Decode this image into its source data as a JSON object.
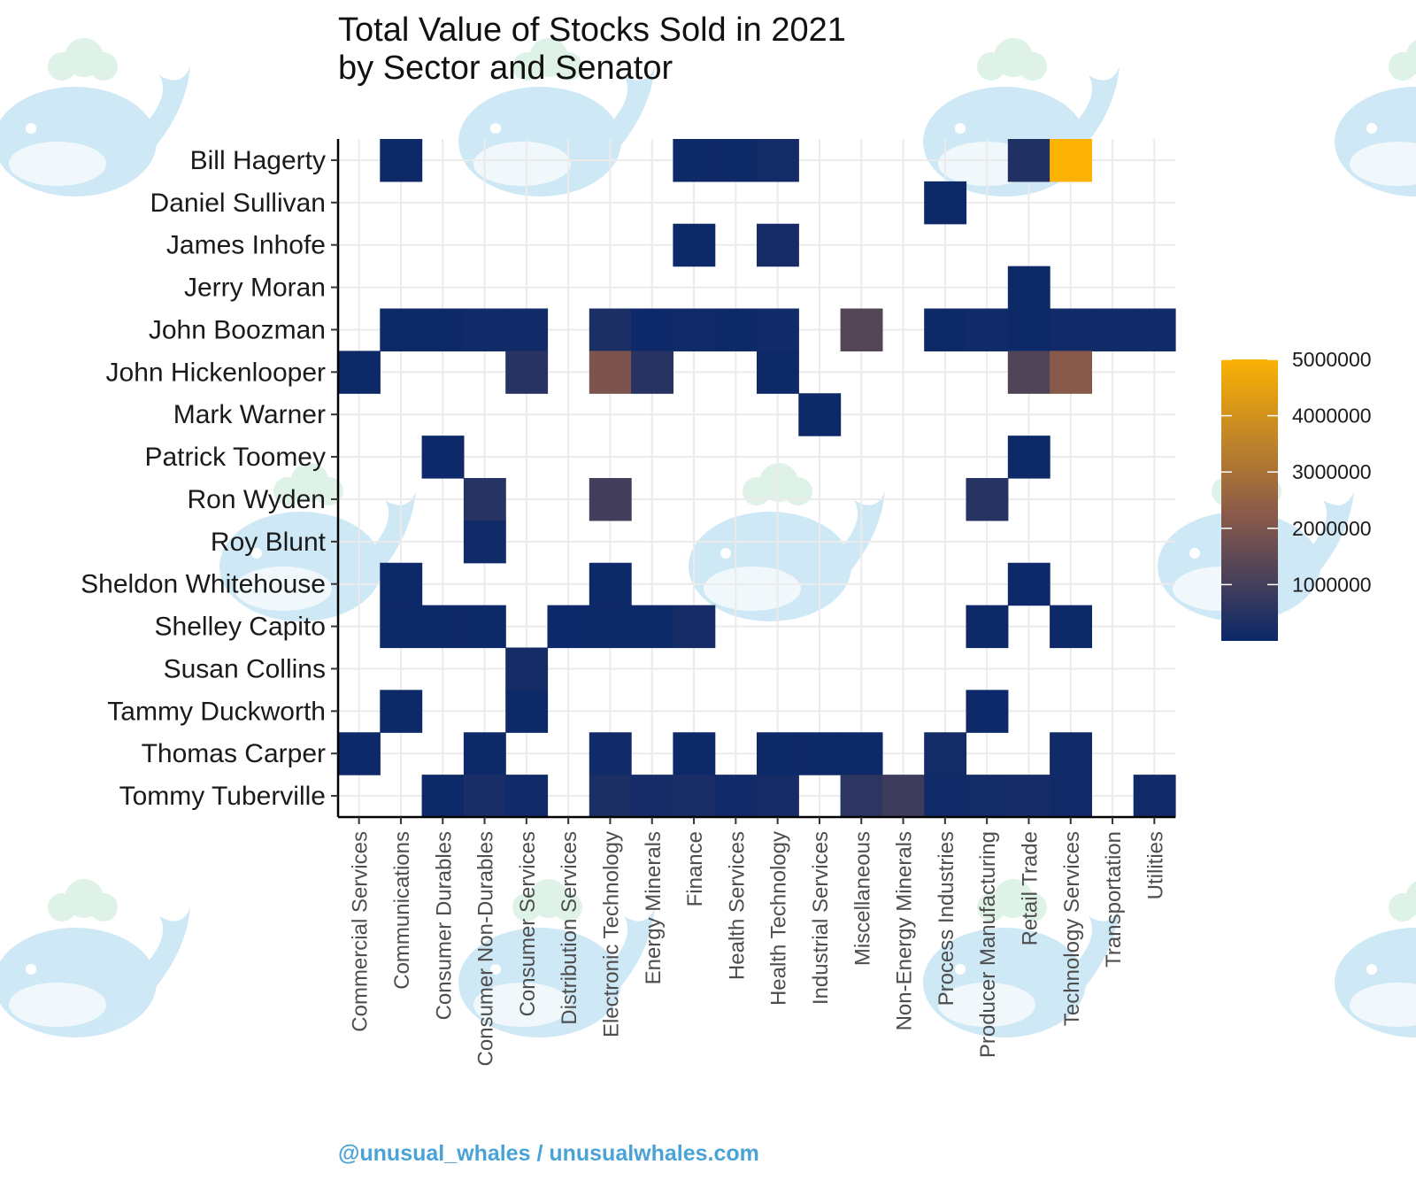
{
  "chart_data": {
    "type": "heatmap",
    "title": [
      "Total Value of Stocks Sold in 2021",
      "by Sector and Senator"
    ],
    "xlabel": "",
    "ylabel": "",
    "x_categories": [
      "Commercial Services",
      "Communications",
      "Consumer Durables",
      "Consumer Non-Durables",
      "Consumer Services",
      "Distribution Services",
      "Electronic Technology",
      "Energy Minerals",
      "Finance",
      "Health Services",
      "Health Technology",
      "Industrial Services",
      "Miscellaneous",
      "Non-Energy Minerals",
      "Process Industries",
      "Producer Manufacturing",
      "Retail Trade",
      "Technology Services",
      "Transportation",
      "Utilities"
    ],
    "y_categories": [
      "Bill Hagerty",
      "Daniel Sullivan",
      "James Inhofe",
      "Jerry Moran",
      "John Boozman",
      "John Hickenlooper",
      "Mark Warner",
      "Patrick Toomey",
      "Ron Wyden",
      "Roy Blunt",
      "Sheldon Whitehouse",
      "Shelley Capito",
      "Susan Collins",
      "Tammy Duckworth",
      "Thomas Carper",
      "Tommy Tuberville"
    ],
    "color_scale": {
      "min": 0,
      "max": 5000000,
      "low_color": "#0b2869",
      "mid_color": "#8a5a4a",
      "high_color": "#fbb203"
    },
    "legend": {
      "ticks": [
        "1000000",
        "2000000",
        "3000000",
        "4000000",
        "5000000"
      ],
      "tick_values": [
        1000000,
        2000000,
        3000000,
        4000000,
        5000000
      ],
      "position": "right"
    },
    "cells": [
      {
        "senator": "Bill Hagerty",
        "sector": "Communications",
        "value": 50000
      },
      {
        "senator": "Bill Hagerty",
        "sector": "Finance",
        "value": 50000
      },
      {
        "senator": "Bill Hagerty",
        "sector": "Health Services",
        "value": 50000
      },
      {
        "senator": "Bill Hagerty",
        "sector": "Health Technology",
        "value": 150000
      },
      {
        "senator": "Bill Hagerty",
        "sector": "Retail Trade",
        "value": 400000
      },
      {
        "senator": "Bill Hagerty",
        "sector": "Technology Services",
        "value": 5000000
      },
      {
        "senator": "Daniel Sullivan",
        "sector": "Process Industries",
        "value": 50000
      },
      {
        "senator": "James Inhofe",
        "sector": "Finance",
        "value": 50000
      },
      {
        "senator": "James Inhofe",
        "sector": "Health Technology",
        "value": 200000
      },
      {
        "senator": "Jerry Moran",
        "sector": "Retail Trade",
        "value": 50000
      },
      {
        "senator": "John Boozman",
        "sector": "Communications",
        "value": 50000
      },
      {
        "senator": "John Boozman",
        "sector": "Consumer Durables",
        "value": 50000
      },
      {
        "senator": "John Boozman",
        "sector": "Consumer Non-Durables",
        "value": 100000
      },
      {
        "senator": "John Boozman",
        "sector": "Consumer Services",
        "value": 100000
      },
      {
        "senator": "John Boozman",
        "sector": "Electronic Technology",
        "value": 300000
      },
      {
        "senator": "John Boozman",
        "sector": "Energy Minerals",
        "value": 30000
      },
      {
        "senator": "John Boozman",
        "sector": "Finance",
        "value": 80000
      },
      {
        "senator": "John Boozman",
        "sector": "Health Services",
        "value": 50000
      },
      {
        "senator": "John Boozman",
        "sector": "Health Technology",
        "value": 100000
      },
      {
        "senator": "John Boozman",
        "sector": "Miscellaneous",
        "value": 1300000
      },
      {
        "senator": "John Boozman",
        "sector": "Process Industries",
        "value": 50000
      },
      {
        "senator": "John Boozman",
        "sector": "Producer Manufacturing",
        "value": 100000
      },
      {
        "senator": "John Boozman",
        "sector": "Retail Trade",
        "value": 50000
      },
      {
        "senator": "John Boozman",
        "sector": "Technology Services",
        "value": 100000
      },
      {
        "senator": "John Boozman",
        "sector": "Transportation",
        "value": 100000
      },
      {
        "senator": "John Boozman",
        "sector": "Utilities",
        "value": 100000
      },
      {
        "senator": "John Hickenlooper",
        "sector": "Commercial Services",
        "value": 50000
      },
      {
        "senator": "John Hickenlooper",
        "sector": "Consumer Services",
        "value": 500000
      },
      {
        "senator": "John Hickenlooper",
        "sector": "Electronic Technology",
        "value": 2000000
      },
      {
        "senator": "John Hickenlooper",
        "sector": "Energy Minerals",
        "value": 500000
      },
      {
        "senator": "John Hickenlooper",
        "sector": "Health Technology",
        "value": 50000
      },
      {
        "senator": "John Hickenlooper",
        "sector": "Retail Trade",
        "value": 1200000
      },
      {
        "senator": "John Hickenlooper",
        "sector": "Technology Services",
        "value": 2200000
      },
      {
        "senator": "Mark Warner",
        "sector": "Industrial Services",
        "value": 50000
      },
      {
        "senator": "Patrick Toomey",
        "sector": "Consumer Durables",
        "value": 30000
      },
      {
        "senator": "Patrick Toomey",
        "sector": "Retail Trade",
        "value": 50000
      },
      {
        "senator": "Ron Wyden",
        "sector": "Consumer Non-Durables",
        "value": 500000
      },
      {
        "senator": "Ron Wyden",
        "sector": "Electronic Technology",
        "value": 1000000
      },
      {
        "senator": "Ron Wyden",
        "sector": "Producer Manufacturing",
        "value": 500000
      },
      {
        "senator": "Roy Blunt",
        "sector": "Consumer Non-Durables",
        "value": 100000
      },
      {
        "senator": "Sheldon Whitehouse",
        "sector": "Communications",
        "value": 50000
      },
      {
        "senator": "Sheldon Whitehouse",
        "sector": "Electronic Technology",
        "value": 50000
      },
      {
        "senator": "Sheldon Whitehouse",
        "sector": "Retail Trade",
        "value": 30000
      },
      {
        "senator": "Shelley Capito",
        "sector": "Communications",
        "value": 50000
      },
      {
        "senator": "Shelley Capito",
        "sector": "Consumer Durables",
        "value": 50000
      },
      {
        "senator": "Shelley Capito",
        "sector": "Consumer Non-Durables",
        "value": 50000
      },
      {
        "senator": "Shelley Capito",
        "sector": "Distribution Services",
        "value": 30000
      },
      {
        "senator": "Shelley Capito",
        "sector": "Electronic Technology",
        "value": 50000
      },
      {
        "senator": "Shelley Capito",
        "sector": "Energy Minerals",
        "value": 50000
      },
      {
        "senator": "Shelley Capito",
        "sector": "Finance",
        "value": 200000
      },
      {
        "senator": "Shelley Capito",
        "sector": "Producer Manufacturing",
        "value": 50000
      },
      {
        "senator": "Shelley Capito",
        "sector": "Technology Services",
        "value": 50000
      },
      {
        "senator": "Susan Collins",
        "sector": "Consumer Services",
        "value": 200000
      },
      {
        "senator": "Tammy Duckworth",
        "sector": "Communications",
        "value": 50000
      },
      {
        "senator": "Tammy Duckworth",
        "sector": "Consumer Services",
        "value": 50000
      },
      {
        "senator": "Tammy Duckworth",
        "sector": "Producer Manufacturing",
        "value": 30000
      },
      {
        "senator": "Thomas Carper",
        "sector": "Commercial Services",
        "value": 30000
      },
      {
        "senator": "Thomas Carper",
        "sector": "Consumer Non-Durables",
        "value": 50000
      },
      {
        "senator": "Thomas Carper",
        "sector": "Electronic Technology",
        "value": 100000
      },
      {
        "senator": "Thomas Carper",
        "sector": "Finance",
        "value": 50000
      },
      {
        "senator": "Thomas Carper",
        "sector": "Health Technology",
        "value": 50000
      },
      {
        "senator": "Thomas Carper",
        "sector": "Industrial Services",
        "value": 50000
      },
      {
        "senator": "Thomas Carper",
        "sector": "Miscellaneous",
        "value": 50000
      },
      {
        "senator": "Thomas Carper",
        "sector": "Process Industries",
        "value": 150000
      },
      {
        "senator": "Thomas Carper",
        "sector": "Technology Services",
        "value": 100000
      },
      {
        "senator": "Tommy Tuberville",
        "sector": "Consumer Durables",
        "value": 50000
      },
      {
        "senator": "Tommy Tuberville",
        "sector": "Consumer Non-Durables",
        "value": 250000
      },
      {
        "senator": "Tommy Tuberville",
        "sector": "Consumer Services",
        "value": 100000
      },
      {
        "senator": "Tommy Tuberville",
        "sector": "Electronic Technology",
        "value": 300000
      },
      {
        "senator": "Tommy Tuberville",
        "sector": "Energy Minerals",
        "value": 200000
      },
      {
        "senator": "Tommy Tuberville",
        "sector": "Finance",
        "value": 250000
      },
      {
        "senator": "Tommy Tuberville",
        "sector": "Health Services",
        "value": 100000
      },
      {
        "senator": "Tommy Tuberville",
        "sector": "Health Technology",
        "value": 200000
      },
      {
        "senator": "Tommy Tuberville",
        "sector": "Miscellaneous",
        "value": 600000
      },
      {
        "senator": "Tommy Tuberville",
        "sector": "Non-Energy Minerals",
        "value": 900000
      },
      {
        "senator": "Tommy Tuberville",
        "sector": "Process Industries",
        "value": 100000
      },
      {
        "senator": "Tommy Tuberville",
        "sector": "Producer Manufacturing",
        "value": 150000
      },
      {
        "senator": "Tommy Tuberville",
        "sector": "Retail Trade",
        "value": 200000
      },
      {
        "senator": "Tommy Tuberville",
        "sector": "Technology Services",
        "value": 100000
      },
      {
        "senator": "Tommy Tuberville",
        "sector": "Utilities",
        "value": 100000
      }
    ]
  },
  "footer": {
    "credit": "@unusual_whales / unusualwhales.com"
  },
  "watermark": {
    "icon": "whale-icon",
    "color": "#9fd3ef"
  }
}
